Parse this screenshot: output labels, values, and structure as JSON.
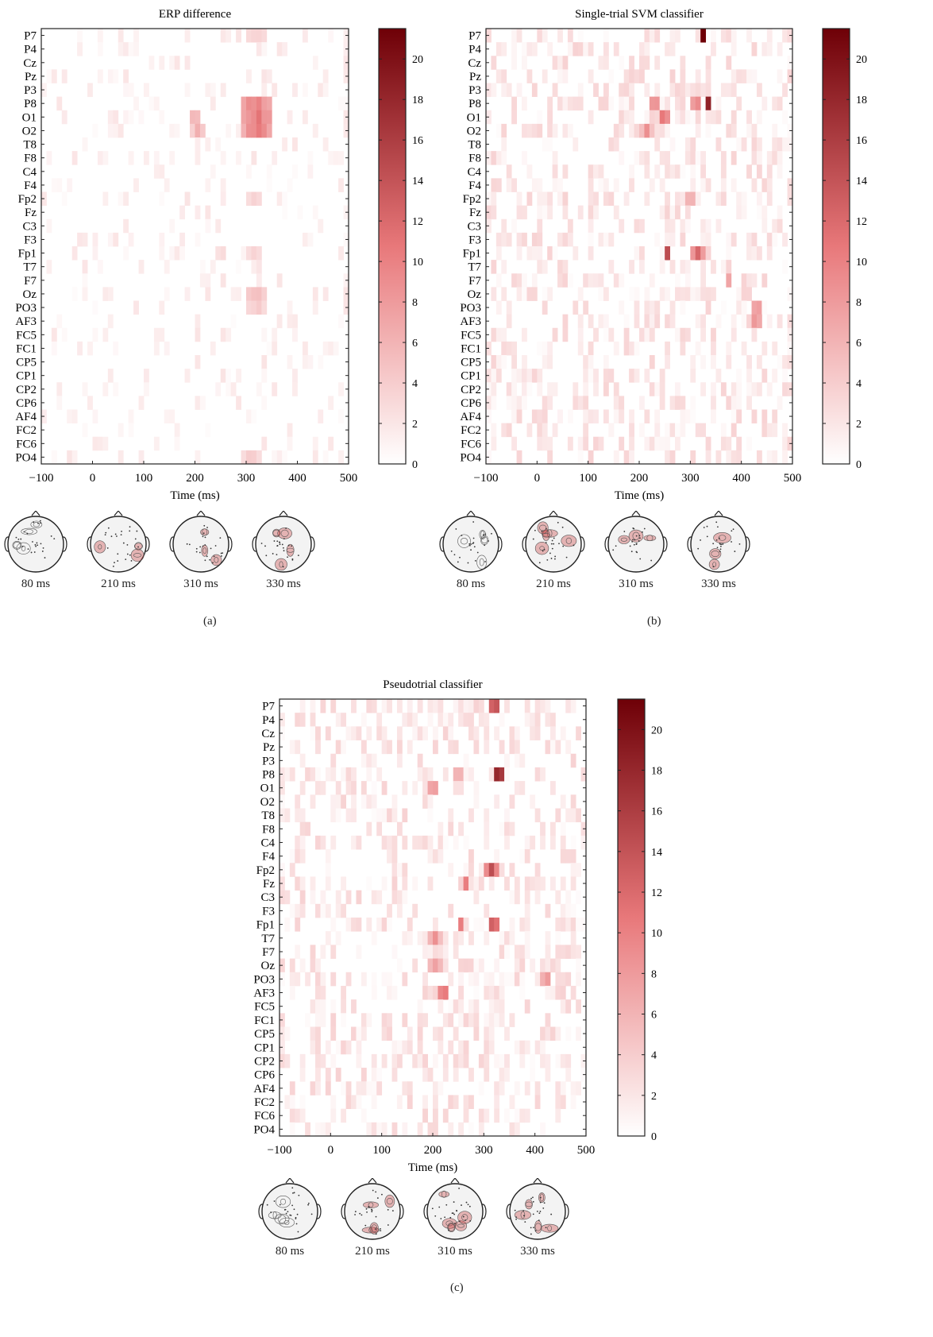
{
  "colors": {
    "low": "#ffffff",
    "mid": "#e8787a",
    "high": "#6e0007",
    "frame": "#222222",
    "head": "#f3f3f3"
  },
  "chart_data": [
    {
      "type": "heatmap",
      "title": "ERP difference",
      "xlabel": "Time (ms)",
      "ylabel": "",
      "xlim": [
        -100,
        500
      ],
      "xticks": [
        "−100",
        "0",
        "100",
        "200",
        "300",
        "400",
        "500"
      ],
      "colorbar": {
        "min": 0,
        "max": 21.5,
        "ticks": [
          "0",
          "2",
          "4",
          "6",
          "8",
          "10",
          "12",
          "14",
          "16",
          "18",
          "20"
        ]
      },
      "channels": [
        "P7",
        "P4",
        "Cz",
        "Pz",
        "P3",
        "P8",
        "O1",
        "O2",
        "T8",
        "F8",
        "C4",
        "F4",
        "Fp2",
        "Fz",
        "C3",
        "F3",
        "Fp1",
        "T7",
        "F7",
        "Oz",
        "PO3",
        "AF3",
        "FC5",
        "FC1",
        "CP5",
        "CP1",
        "CP2",
        "CP6",
        "AF4",
        "FC2",
        "FC6",
        "PO4"
      ],
      "hotspots": [
        {
          "ch": "P8",
          "t": 320,
          "w": 50,
          "v": 10
        },
        {
          "ch": "O1",
          "t": 320,
          "w": 55,
          "v": 11
        },
        {
          "ch": "O2",
          "t": 320,
          "w": 55,
          "v": 10
        },
        {
          "ch": "O1",
          "t": 200,
          "w": 20,
          "v": 6
        },
        {
          "ch": "O2",
          "t": 205,
          "w": 20,
          "v": 6
        },
        {
          "ch": "P7",
          "t": 320,
          "w": 40,
          "v": 4
        },
        {
          "ch": "Oz",
          "t": 320,
          "w": 45,
          "v": 5
        },
        {
          "ch": "PO3",
          "t": 320,
          "w": 45,
          "v": 4
        },
        {
          "ch": "Fp2",
          "t": 315,
          "w": 25,
          "v": 4
        },
        {
          "ch": "Fp1",
          "t": 315,
          "w": 25,
          "v": 4
        },
        {
          "ch": "Fp1",
          "t": 250,
          "w": 20,
          "v": 3
        },
        {
          "ch": "PO4",
          "t": 310,
          "w": 45,
          "v": 4
        }
      ],
      "topomaps": [
        {
          "label": "80 ms"
        },
        {
          "label": "210 ms"
        },
        {
          "label": "310 ms"
        },
        {
          "label": "330 ms"
        }
      ],
      "panel_label": "(a)"
    },
    {
      "type": "heatmap",
      "title": "Single-trial SVM classifier",
      "xlabel": "Time (ms)",
      "ylabel": "",
      "xlim": [
        -100,
        500
      ],
      "xticks": [
        "−100",
        "0",
        "100",
        "200",
        "300",
        "400",
        "500"
      ],
      "colorbar": {
        "min": 0,
        "max": 21.5,
        "ticks": [
          "0",
          "2",
          "4",
          "6",
          "8",
          "10",
          "12",
          "14",
          "16",
          "18",
          "20"
        ]
      },
      "channels": [
        "P7",
        "P4",
        "Cz",
        "Pz",
        "P3",
        "P8",
        "O1",
        "O2",
        "T8",
        "F8",
        "C4",
        "F4",
        "Fp2",
        "Fz",
        "C3",
        "F3",
        "Fp1",
        "T7",
        "F7",
        "Oz",
        "PO3",
        "AF3",
        "FC5",
        "FC1",
        "CP5",
        "CP1",
        "CP2",
        "CP6",
        "AF4",
        "FC2",
        "FC6",
        "PO4"
      ],
      "hotspots": [
        {
          "ch": "P7",
          "t": 325,
          "w": 10,
          "v": 20
        },
        {
          "ch": "P8",
          "t": 335,
          "w": 10,
          "v": 20
        },
        {
          "ch": "P8",
          "t": 310,
          "w": 20,
          "v": 10
        },
        {
          "ch": "P8",
          "t": 230,
          "w": 15,
          "v": 11
        },
        {
          "ch": "O1",
          "t": 250,
          "w": 15,
          "v": 12
        },
        {
          "ch": "Fp1",
          "t": 255,
          "w": 15,
          "v": 13
        },
        {
          "ch": "Fp1",
          "t": 315,
          "w": 20,
          "v": 11
        },
        {
          "ch": "Fp2",
          "t": 300,
          "w": 20,
          "v": 8
        },
        {
          "ch": "F7",
          "t": 375,
          "w": 15,
          "v": 8
        },
        {
          "ch": "PO3",
          "t": 430,
          "w": 15,
          "v": 10
        },
        {
          "ch": "AF3",
          "t": 430,
          "w": 15,
          "v": 9
        },
        {
          "ch": "O2",
          "t": 215,
          "w": 20,
          "v": 8
        }
      ],
      "topomaps": [
        {
          "label": "80 ms"
        },
        {
          "label": "210 ms"
        },
        {
          "label": "310 ms"
        },
        {
          "label": "330 ms"
        }
      ],
      "panel_label": "(b)"
    },
    {
      "type": "heatmap",
      "title": "Pseudotrial classifier",
      "xlabel": "Time (ms)",
      "ylabel": "",
      "xlim": [
        -100,
        500
      ],
      "xticks": [
        "−100",
        "0",
        "100",
        "200",
        "300",
        "400",
        "500"
      ],
      "colorbar": {
        "min": 0,
        "max": 21.5,
        "ticks": [
          "0",
          "2",
          "4",
          "6",
          "8",
          "10",
          "12",
          "14",
          "16",
          "18",
          "20"
        ]
      },
      "channels": [
        "P7",
        "P4",
        "Cz",
        "Pz",
        "P3",
        "P8",
        "O1",
        "O2",
        "T8",
        "F8",
        "C4",
        "F4",
        "Fp2",
        "Fz",
        "C3",
        "F3",
        "Fp1",
        "T7",
        "F7",
        "Oz",
        "PO3",
        "AF3",
        "FC5",
        "FC1",
        "CP5",
        "CP1",
        "CP2",
        "CP6",
        "AF4",
        "FC2",
        "FC6",
        "PO4"
      ],
      "hotspots": [
        {
          "ch": "P8",
          "t": 330,
          "w": 25,
          "v": 20
        },
        {
          "ch": "P7",
          "t": 320,
          "w": 10,
          "v": 17
        },
        {
          "ch": "O1",
          "t": 200,
          "w": 20,
          "v": 10
        },
        {
          "ch": "Fp2",
          "t": 315,
          "w": 20,
          "v": 13
        },
        {
          "ch": "Fz",
          "t": 265,
          "w": 15,
          "v": 12
        },
        {
          "ch": "Fp1",
          "t": 320,
          "w": 25,
          "v": 14
        },
        {
          "ch": "Fp1",
          "t": 255,
          "w": 15,
          "v": 12
        },
        {
          "ch": "AF3",
          "t": 220,
          "w": 15,
          "v": 13
        },
        {
          "ch": "Oz",
          "t": 205,
          "w": 20,
          "v": 8
        },
        {
          "ch": "PO3",
          "t": 420,
          "w": 15,
          "v": 9
        },
        {
          "ch": "P8",
          "t": 250,
          "w": 15,
          "v": 7
        },
        {
          "ch": "T7",
          "t": 205,
          "w": 20,
          "v": 8
        }
      ],
      "topomaps": [
        {
          "label": "80 ms"
        },
        {
          "label": "210 ms"
        },
        {
          "label": "310 ms"
        },
        {
          "label": "330 ms"
        }
      ],
      "panel_label": "(c)"
    }
  ]
}
